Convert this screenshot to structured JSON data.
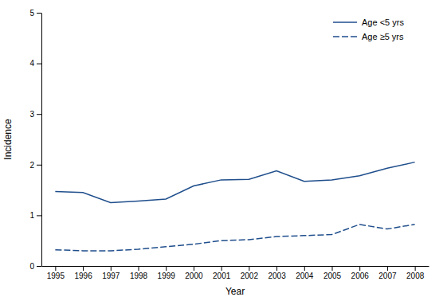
{
  "chart_data": {
    "type": "line",
    "x": [
      1995,
      1996,
      1997,
      1998,
      1999,
      2000,
      2001,
      2002,
      2003,
      2004,
      2005,
      2006,
      2007,
      2008
    ],
    "series": [
      {
        "name": "Age <5 yrs",
        "color": "#1f4e8c",
        "line_style": "solid",
        "values": [
          1.47,
          1.45,
          1.25,
          1.28,
          1.32,
          1.58,
          1.7,
          1.71,
          1.88,
          1.67,
          1.7,
          1.78,
          1.93,
          2.05
        ]
      },
      {
        "name": "Age ≥5 yrs",
        "color": "#1f4e8c",
        "line_style": "dashed",
        "values": [
          0.32,
          0.3,
          0.3,
          0.33,
          0.38,
          0.43,
          0.5,
          0.52,
          0.58,
          0.6,
          0.62,
          0.82,
          0.73,
          0.82
        ]
      }
    ],
    "xlabel": "Year",
    "ylabel": "Incidence",
    "xlim": [
      1994.5,
      2008.5
    ],
    "xticks": [
      1995,
      1996,
      1997,
      1998,
      1999,
      2000,
      2001,
      2002,
      2003,
      2004,
      2005,
      2006,
      2007,
      2008
    ],
    "ylim": [
      0,
      5
    ],
    "yticks": [
      0,
      1,
      2,
      3,
      4,
      5
    ],
    "grid": false,
    "legend": "upper right"
  }
}
